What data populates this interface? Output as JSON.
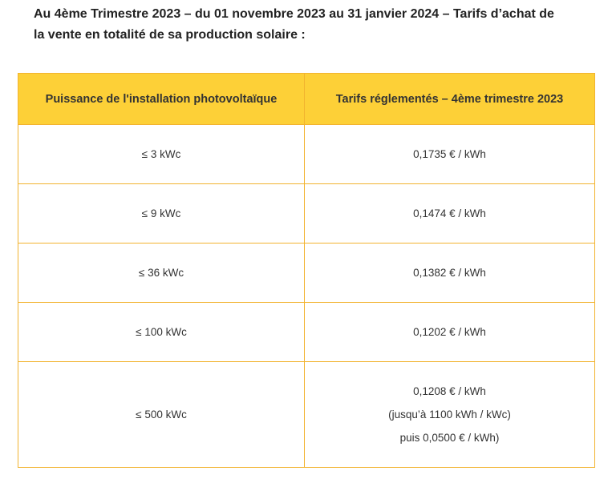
{
  "heading": {
    "line1": "Au 4ème Trimestre 2023 – du 01 novembre 2023 au 31 janvier 2024 – Tarifs d’achat de",
    "line2": "la vente en totalité de sa production solaire :"
  },
  "table": {
    "headers": [
      "Puissance de l'installation photovoltaïque",
      "Tarifs réglementés – 4ème trimestre 2023"
    ],
    "rows": [
      {
        "power": "≤ 3 kWc",
        "tariff": [
          "0,1735 € / kWh"
        ]
      },
      {
        "power": "≤ 9 kWc",
        "tariff": [
          "0,1474 € / kWh"
        ]
      },
      {
        "power": "≤ 36 kWc",
        "tariff": [
          "0,1382 € / kWh"
        ]
      },
      {
        "power": "≤ 100 kWc",
        "tariff": [
          "0,1202 € / kWh"
        ]
      },
      {
        "power": "≤ 500 kWc",
        "tariff": [
          "0,1208 € / kWh",
          "(jusqu’à 1100 kWh / kWc)",
          "puis 0,0500 € / kWh)"
        ]
      }
    ]
  },
  "colors": {
    "header_background": "#fdd037",
    "border": "#f2b32f",
    "text": "#222222"
  }
}
